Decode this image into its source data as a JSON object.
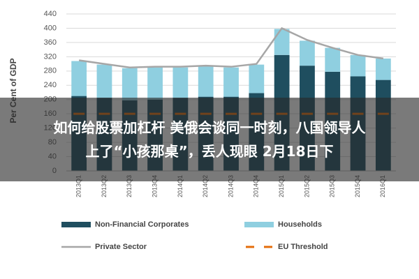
{
  "chart_data": {
    "type": "bar",
    "y_label": "Per Cent of GDP",
    "categories": [
      "2013Q1",
      "2013Q2",
      "2013Q3",
      "2013Q4",
      "2014Q1",
      "2014Q2",
      "2014Q3",
      "2014Q4",
      "2015Q1",
      "2015Q2",
      "2015Q3",
      "2015Q4",
      "2016Q1"
    ],
    "series": [
      {
        "name": "Non-Financial Corporates",
        "color": "#1f4e5f",
        "type": "bar",
        "values": [
          210,
          205,
          198,
          200,
          205,
          208,
          208,
          218,
          325,
          295,
          278,
          265,
          255
        ]
      },
      {
        "name": "Households",
        "color": "#8fcfe0",
        "type": "bar",
        "values": [
          98,
          93,
          90,
          90,
          85,
          85,
          82,
          80,
          73,
          70,
          67,
          60,
          60
        ]
      },
      {
        "name": "Private Sector",
        "color": "#a6a6a6",
        "type": "line",
        "values": [
          310,
          300,
          290,
          292,
          292,
          295,
          292,
          300,
          400,
          367,
          345,
          325,
          315
        ]
      },
      {
        "name": "EU Threshold",
        "color": "#e46c0a",
        "type": "dash",
        "values": [
          160,
          160,
          160,
          160,
          160,
          160,
          160,
          160,
          160,
          160,
          160,
          160,
          160
        ]
      }
    ],
    "ylim": [
      0,
      440
    ],
    "yticks": [
      0,
      40,
      80,
      120,
      160,
      200,
      240,
      280,
      320,
      360,
      400,
      440
    ],
    "grid": true
  },
  "caption": [
    "如何给股票加杠杆 美俄会谈同一时刻，八国领导人",
    "上了“小孩那桌”，丢人现眼 2月18日下"
  ]
}
